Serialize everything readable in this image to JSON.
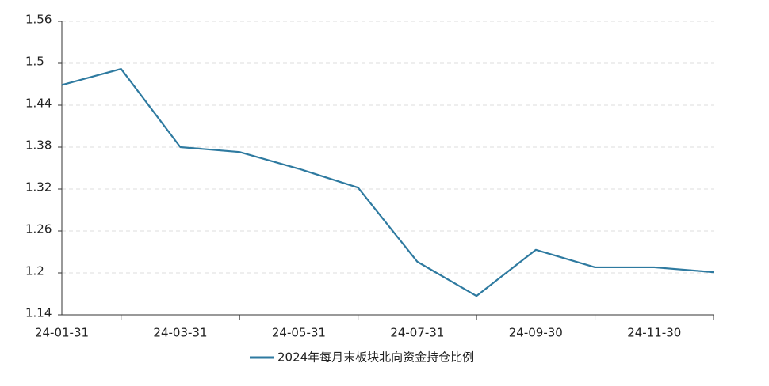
{
  "chart_data": {
    "type": "line",
    "categories": [
      "24-01-31",
      null,
      "24-03-31",
      null,
      "24-05-31",
      null,
      "24-07-31",
      null,
      "24-09-30",
      null,
      "24-11-30",
      null
    ],
    "series": [
      {
        "name": "2024年每月末板块北向资金持仓比例",
        "color": "#2e7aa0",
        "values": [
          1.469,
          1.492,
          1.38,
          1.373,
          1.349,
          1.322,
          1.216,
          1.167,
          1.233,
          1.208,
          1.208,
          1.201
        ]
      }
    ],
    "ylim": [
      1.14,
      1.56
    ],
    "yticks": [
      1.14,
      1.2,
      1.26,
      1.32,
      1.38,
      1.44,
      1.5,
      1.56
    ],
    "grid": true,
    "legend": "bottom"
  }
}
